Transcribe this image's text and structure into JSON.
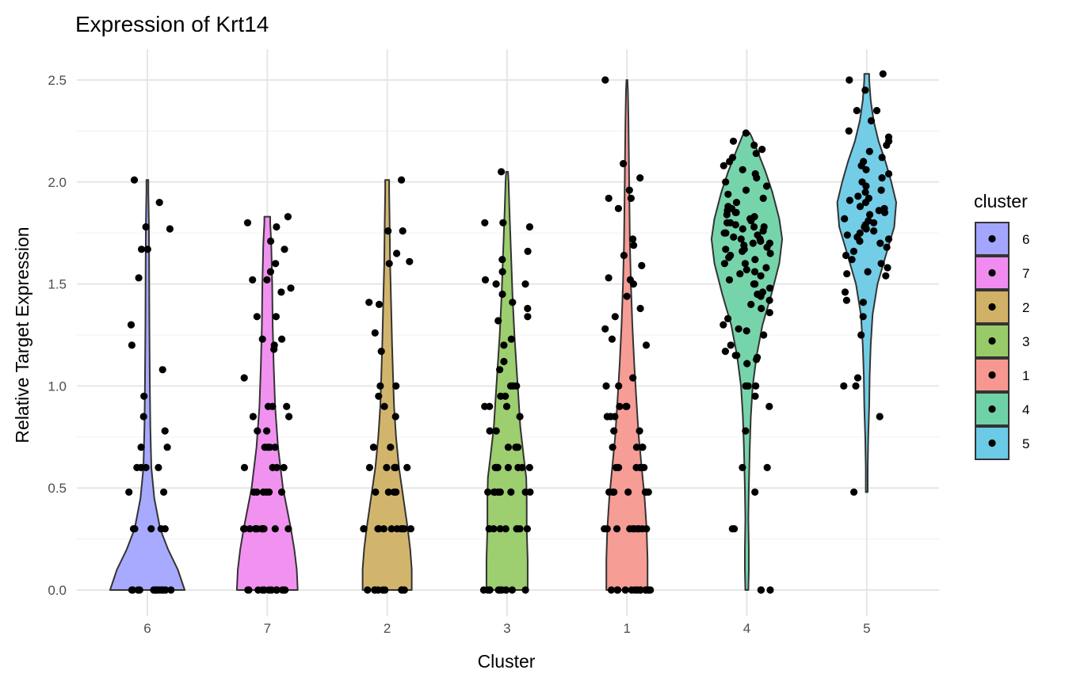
{
  "chart_data": {
    "type": "violin",
    "title": "Expression of Krt14",
    "xlabel": "Cluster",
    "ylabel": "Relative Target Expression",
    "categories": [
      "6",
      "7",
      "2",
      "3",
      "1",
      "4",
      "5"
    ],
    "ylim": [
      -0.05,
      2.6
    ],
    "yticks": [
      "0.0",
      "0.5",
      "1.0",
      "1.5",
      "2.0",
      "2.5"
    ],
    "ytick_values": [
      0,
      0.5,
      1.0,
      1.5,
      2.0,
      2.5
    ],
    "grid": true,
    "legend": {
      "title": "cluster",
      "position": "right",
      "entries": [
        "6",
        "7",
        "2",
        "3",
        "1",
        "4",
        "5"
      ]
    },
    "colors": {
      "6": "#A3A5FF",
      "7": "#F08CEF",
      "2": "#D0B165",
      "3": "#98CB67",
      "1": "#F69890",
      "4": "#6FD2A6",
      "5": "#6BCAE6"
    },
    "series": [
      {
        "name": "6",
        "max": 2.01,
        "density": [
          [
            0,
            0.76
          ],
          [
            0.1,
            0.62
          ],
          [
            0.2,
            0.42
          ],
          [
            0.3,
            0.26
          ],
          [
            0.45,
            0.14
          ],
          [
            0.6,
            0.08
          ],
          [
            0.8,
            0.06
          ],
          [
            1.0,
            0.05
          ],
          [
            1.3,
            0.04
          ],
          [
            1.6,
            0.035
          ],
          [
            1.8,
            0.03
          ],
          [
            1.95,
            0.02
          ],
          [
            2.01,
            0.02
          ]
        ],
        "points": [
          0,
          0,
          0,
          0,
          0,
          0,
          0,
          0,
          0,
          0,
          0,
          0,
          0,
          0,
          0.3,
          0.3,
          0.3,
          0.3,
          0.3,
          0.48,
          0.48,
          0.6,
          0.6,
          0.6,
          0.6,
          0.7,
          0.7,
          0.78,
          0.85,
          0.95,
          1.08,
          1.2,
          1.3,
          1.53,
          1.67,
          1.67,
          1.77,
          1.78,
          1.9,
          2.01
        ]
      },
      {
        "name": "7",
        "max": 1.83,
        "density": [
          [
            0,
            0.62
          ],
          [
            0.1,
            0.6
          ],
          [
            0.2,
            0.55
          ],
          [
            0.3,
            0.48
          ],
          [
            0.4,
            0.4
          ],
          [
            0.5,
            0.32
          ],
          [
            0.7,
            0.22
          ],
          [
            0.9,
            0.16
          ],
          [
            1.1,
            0.13
          ],
          [
            1.3,
            0.11
          ],
          [
            1.5,
            0.1
          ],
          [
            1.7,
            0.08
          ],
          [
            1.8,
            0.06
          ],
          [
            1.83,
            0.06
          ]
        ],
        "points": [
          0,
          0,
          0,
          0,
          0,
          0,
          0,
          0,
          0,
          0,
          0,
          0,
          0,
          0.3,
          0.3,
          0.3,
          0.3,
          0.3,
          0.3,
          0.3,
          0.3,
          0.3,
          0.3,
          0.3,
          0.3,
          0.48,
          0.48,
          0.48,
          0.48,
          0.48,
          0.48,
          0.6,
          0.6,
          0.6,
          0.6,
          0.7,
          0.7,
          0.7,
          0.7,
          0.78,
          0.78,
          0.85,
          0.85,
          0.9,
          0.9,
          0.9,
          1.04,
          1.18,
          1.2,
          1.23,
          1.23,
          1.34,
          1.34,
          1.46,
          1.48,
          1.52,
          1.52,
          1.56,
          1.6,
          1.67,
          1.71,
          1.78,
          1.8,
          1.83
        ]
      },
      {
        "name": "2",
        "max": 2.01,
        "density": [
          [
            0,
            0.5
          ],
          [
            0.1,
            0.5
          ],
          [
            0.2,
            0.47
          ],
          [
            0.3,
            0.42
          ],
          [
            0.4,
            0.36
          ],
          [
            0.5,
            0.3
          ],
          [
            0.6,
            0.24
          ],
          [
            0.75,
            0.18
          ],
          [
            0.9,
            0.14
          ],
          [
            1.05,
            0.12
          ],
          [
            1.2,
            0.1
          ],
          [
            1.4,
            0.08
          ],
          [
            1.6,
            0.06
          ],
          [
            1.8,
            0.05
          ],
          [
            1.95,
            0.04
          ],
          [
            2.01,
            0.04
          ]
        ],
        "points": [
          0,
          0,
          0,
          0,
          0,
          0,
          0,
          0,
          0,
          0.3,
          0.3,
          0.3,
          0.3,
          0.3,
          0.3,
          0.3,
          0.3,
          0.3,
          0.3,
          0.3,
          0.48,
          0.48,
          0.48,
          0.48,
          0.6,
          0.6,
          0.6,
          0.6,
          0.6,
          0.6,
          0.7,
          0.7,
          0.85,
          0.9,
          0.95,
          1.0,
          1.0,
          1.17,
          1.26,
          1.4,
          1.41,
          1.6,
          1.61,
          1.65,
          1.76,
          1.76,
          2.01
        ]
      },
      {
        "name": "3",
        "max": 2.05,
        "density": [
          [
            0,
            0.42
          ],
          [
            0.15,
            0.42
          ],
          [
            0.3,
            0.4
          ],
          [
            0.45,
            0.4
          ],
          [
            0.55,
            0.39
          ],
          [
            0.65,
            0.34
          ],
          [
            0.8,
            0.27
          ],
          [
            0.95,
            0.23
          ],
          [
            1.1,
            0.19
          ],
          [
            1.25,
            0.15
          ],
          [
            1.45,
            0.11
          ],
          [
            1.65,
            0.08
          ],
          [
            1.85,
            0.05
          ],
          [
            2.0,
            0.03
          ],
          [
            2.05,
            0.02
          ]
        ],
        "points": [
          0,
          0,
          0,
          0,
          0,
          0,
          0,
          0,
          0,
          0,
          0,
          0.3,
          0.3,
          0.3,
          0.3,
          0.3,
          0.3,
          0.3,
          0.3,
          0.3,
          0.48,
          0.48,
          0.48,
          0.48,
          0.48,
          0.48,
          0.48,
          0.48,
          0.6,
          0.6,
          0.6,
          0.6,
          0.6,
          0.6,
          0.6,
          0.7,
          0.7,
          0.7,
          0.7,
          0.78,
          0.78,
          0.85,
          0.9,
          0.9,
          0.9,
          0.95,
          0.95,
          1.0,
          1.0,
          1.0,
          1.08,
          1.12,
          1.2,
          1.23,
          1.32,
          1.34,
          1.38,
          1.41,
          1.45,
          1.5,
          1.5,
          1.52,
          1.56,
          1.62,
          1.66,
          1.78,
          1.8,
          1.8,
          2.05
        ]
      },
      {
        "name": "1",
        "max": 2.5,
        "density": [
          [
            0,
            0.42
          ],
          [
            0.15,
            0.42
          ],
          [
            0.3,
            0.4
          ],
          [
            0.45,
            0.36
          ],
          [
            0.6,
            0.3
          ],
          [
            0.75,
            0.24
          ],
          [
            0.9,
            0.2
          ],
          [
            1.1,
            0.15
          ],
          [
            1.3,
            0.11
          ],
          [
            1.5,
            0.08
          ],
          [
            1.7,
            0.06
          ],
          [
            1.9,
            0.05
          ],
          [
            2.1,
            0.04
          ],
          [
            2.3,
            0.03
          ],
          [
            2.45,
            0.02
          ],
          [
            2.5,
            0.01
          ]
        ],
        "points": [
          0,
          0,
          0,
          0,
          0,
          0,
          0,
          0,
          0,
          0,
          0,
          0,
          0,
          0.3,
          0.3,
          0.3,
          0.3,
          0.3,
          0.3,
          0.3,
          0.3,
          0.3,
          0.3,
          0.48,
          0.48,
          0.48,
          0.48,
          0.48,
          0.48,
          0.48,
          0.6,
          0.6,
          0.6,
          0.6,
          0.6,
          0.6,
          0.7,
          0.7,
          0.7,
          0.7,
          0.78,
          0.78,
          0.85,
          0.85,
          0.85,
          0.9,
          0.9,
          0.9,
          1.0,
          1.0,
          1.04,
          1.2,
          1.23,
          1.28,
          1.34,
          1.38,
          1.44,
          1.5,
          1.52,
          1.53,
          1.59,
          1.64,
          1.69,
          1.72,
          1.87,
          1.92,
          1.92,
          1.96,
          2.02,
          2.09,
          2.5
        ]
      },
      {
        "name": "4",
        "max": 2.24,
        "density": [
          [
            0,
            0.03
          ],
          [
            0.1,
            0.04
          ],
          [
            0.2,
            0.04
          ],
          [
            0.35,
            0.03
          ],
          [
            0.5,
            0.04
          ],
          [
            0.7,
            0.06
          ],
          [
            0.85,
            0.08
          ],
          [
            1.0,
            0.12
          ],
          [
            1.15,
            0.2
          ],
          [
            1.3,
            0.32
          ],
          [
            1.45,
            0.5
          ],
          [
            1.6,
            0.66
          ],
          [
            1.72,
            0.72
          ],
          [
            1.82,
            0.66
          ],
          [
            1.95,
            0.52
          ],
          [
            2.05,
            0.38
          ],
          [
            2.15,
            0.22
          ],
          [
            2.22,
            0.1
          ],
          [
            2.24,
            0.06
          ]
        ],
        "points": [
          0,
          0,
          0,
          0.3,
          0.3,
          0.48,
          0.6,
          0.6,
          0.78,
          0.9,
          0.95,
          1.0,
          1.0,
          1.0,
          1.11,
          1.13,
          1.14,
          1.15,
          1.15,
          1.17,
          1.2,
          1.25,
          1.27,
          1.28,
          1.3,
          1.33,
          1.36,
          1.38,
          1.4,
          1.42,
          1.44,
          1.45,
          1.46,
          1.48,
          1.5,
          1.5,
          1.52,
          1.54,
          1.55,
          1.56,
          1.57,
          1.58,
          1.6,
          1.6,
          1.62,
          1.63,
          1.64,
          1.65,
          1.66,
          1.67,
          1.67,
          1.68,
          1.69,
          1.7,
          1.7,
          1.71,
          1.72,
          1.72,
          1.73,
          1.74,
          1.75,
          1.75,
          1.76,
          1.77,
          1.78,
          1.78,
          1.79,
          1.8,
          1.8,
          1.81,
          1.82,
          1.83,
          1.84,
          1.85,
          1.85,
          1.86,
          1.87,
          1.88,
          1.9,
          1.92,
          1.94,
          1.96,
          1.98,
          2.0,
          2.02,
          2.04,
          2.06,
          2.08,
          2.1,
          2.12,
          2.14,
          2.16,
          2.18,
          2.2,
          2.24
        ]
      },
      {
        "name": "5",
        "max": 2.53,
        "density": [
          [
            0.48,
            0.02
          ],
          [
            0.6,
            0.02
          ],
          [
            0.75,
            0.03
          ],
          [
            0.9,
            0.05
          ],
          [
            1.05,
            0.06
          ],
          [
            1.2,
            0.08
          ],
          [
            1.35,
            0.12
          ],
          [
            1.5,
            0.22
          ],
          [
            1.65,
            0.4
          ],
          [
            1.78,
            0.56
          ],
          [
            1.9,
            0.6
          ],
          [
            2.0,
            0.5
          ],
          [
            2.1,
            0.38
          ],
          [
            2.2,
            0.24
          ],
          [
            2.3,
            0.14
          ],
          [
            2.4,
            0.08
          ],
          [
            2.5,
            0.05
          ],
          [
            2.53,
            0.05
          ]
        ],
        "points": [
          0.48,
          0.85,
          1.0,
          1.0,
          1.04,
          1.25,
          1.34,
          1.41,
          1.42,
          1.46,
          1.54,
          1.55,
          1.56,
          1.58,
          1.6,
          1.62,
          1.64,
          1.66,
          1.68,
          1.7,
          1.71,
          1.72,
          1.73,
          1.74,
          1.75,
          1.76,
          1.77,
          1.78,
          1.79,
          1.8,
          1.81,
          1.82,
          1.84,
          1.85,
          1.86,
          1.87,
          1.88,
          1.9,
          1.91,
          1.92,
          1.93,
          1.95,
          1.96,
          1.98,
          2.0,
          2.02,
          2.04,
          2.06,
          2.08,
          2.1,
          2.12,
          2.15,
          2.18,
          2.2,
          2.22,
          2.25,
          2.3,
          2.35,
          2.35,
          2.45,
          2.5,
          2.53
        ]
      }
    ]
  }
}
